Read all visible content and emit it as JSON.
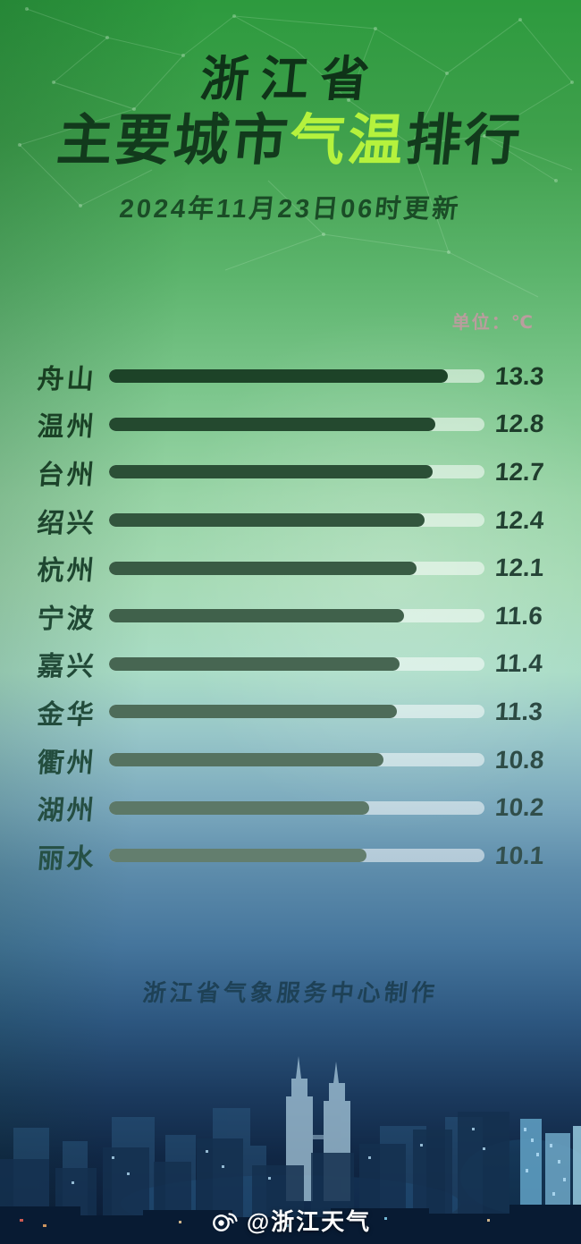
{
  "header": {
    "region_title": "浙江省",
    "main_title_parts": {
      "prefix": "主要城市",
      "highlight": "气温",
      "suffix": "排行"
    },
    "update_time": "2024年11月23日06时更新"
  },
  "chart_data": {
    "type": "bar",
    "orientation": "horizontal",
    "title": "浙江省主要城市气温排行",
    "unit_label": "单位：℃",
    "categories": [
      "舟山",
      "温州",
      "台州",
      "绍兴",
      "杭州",
      "宁波",
      "嘉兴",
      "金华",
      "衢州",
      "湖州",
      "丽水"
    ],
    "values": [
      13.3,
      12.8,
      12.7,
      12.4,
      12.1,
      11.6,
      11.4,
      11.3,
      10.8,
      10.2,
      10.1
    ],
    "scale_max": 14.75,
    "grid": false,
    "legend": false,
    "bar_color_start": "#1d4328",
    "bar_color_end": "#637e6e",
    "label_color_start": "#193f22",
    "label_color_end": "#265045",
    "value_color_start": "#1b3a26",
    "value_color_end": "#33504e",
    "track_color": "rgba(255,255,255,0.52)"
  },
  "footer": {
    "credit": "浙江省气象服务中心制作",
    "watermark": "@浙江天气",
    "watermark_icon": "weibo-icon"
  },
  "colors": {
    "highlight_green": "#b5f23d",
    "title_dark_green": "#123a1c",
    "background_top_green": "#2d9a3e",
    "background_bottom_navy": "#0a1a32"
  }
}
